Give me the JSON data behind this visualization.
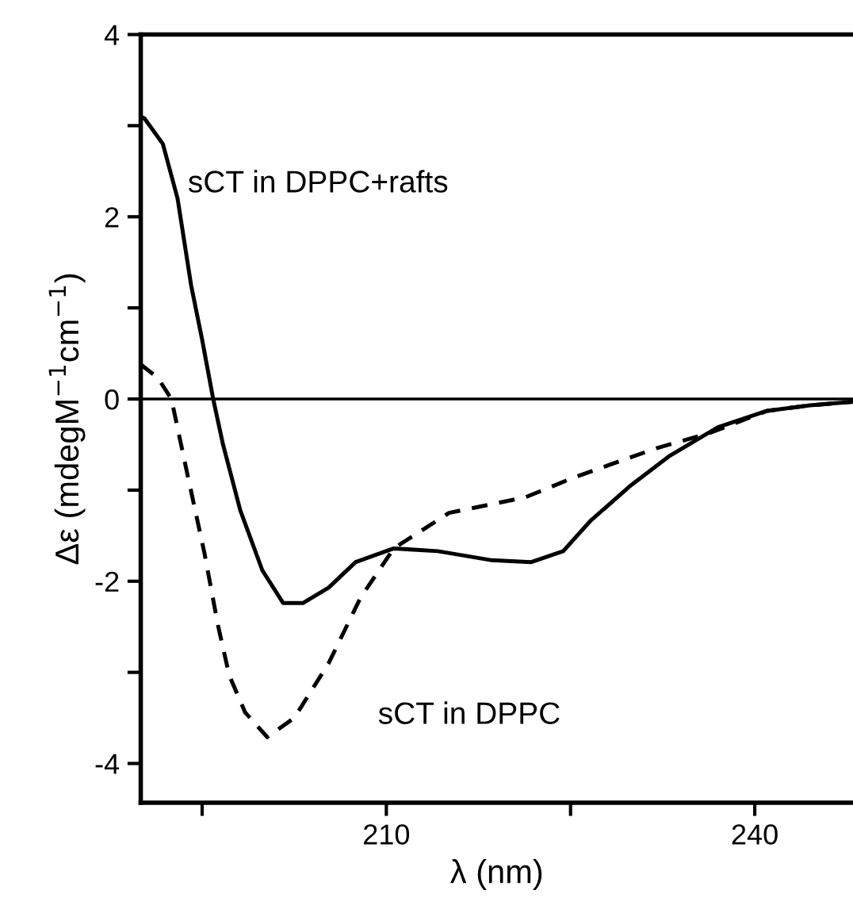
{
  "chart_data": {
    "type": "line",
    "xlabel": "λ (nm)",
    "ylabel": "Δε (mdegM$^{−1}$cm$^{−1}$)",
    "xlim": [
      190,
      248
    ],
    "ylim": [
      -4.43,
      4
    ],
    "xticks": [
      {
        "value": 195,
        "label": null
      },
      210,
      {
        "value": 225,
        "label": null
      },
      240
    ],
    "yticks": [
      -4,
      {
        "value": -3,
        "label": null
      },
      -2,
      {
        "value": -1,
        "label": null
      },
      0,
      {
        "value": 1,
        "label": null
      },
      2,
      {
        "value": 3,
        "label": null
      },
      4
    ],
    "grid": false,
    "legend": false,
    "marker": "none",
    "ref_lines": [
      {
        "axis": "y",
        "value": 0,
        "color": "#000000"
      }
    ],
    "series": [
      {
        "name": "sCT in DPPC+rafts",
        "color": "#000000",
        "line_style": "solid",
        "x": [
          190,
          190.3,
          191.8,
          193,
          194.1,
          195,
          195.9,
          196.7,
          198.1,
          199.9,
          201.6,
          203.2,
          205.3,
          207.5,
          210.6,
          214.2,
          218.6,
          221.8,
          224.4,
          226.6,
          229.8,
          233,
          237,
          241,
          244.5,
          248
        ],
        "values": [
          3.1,
          3.08,
          2.8,
          2.2,
          1.25,
          0.65,
          0,
          -0.5,
          -1.22,
          -1.88,
          -2.24,
          -2.24,
          -2.07,
          -1.79,
          -1.64,
          -1.67,
          -1.77,
          -1.79,
          -1.67,
          -1.34,
          -0.96,
          -0.63,
          -0.31,
          -0.13,
          -0.07,
          -0.03
        ]
      },
      {
        "name": "sCT in DPPC",
        "color": "#000000",
        "line_style": "dashed",
        "x": [
          190,
          191.4,
          192.5,
          193.6,
          195.2,
          196.3,
          197.2,
          198.5,
          200.3,
          202.5,
          205.3,
          207.9,
          210.6,
          215.1,
          221.3,
          225.3,
          232,
          236.4,
          241,
          244.5,
          248
        ],
        "values": [
          0.38,
          0.23,
          0,
          -0.7,
          -1.7,
          -2.49,
          -3.03,
          -3.44,
          -3.71,
          -3.5,
          -2.9,
          -2.18,
          -1.64,
          -1.25,
          -1.08,
          -0.86,
          -0.54,
          -0.37,
          -0.13,
          -0.07,
          -0.03
        ]
      }
    ]
  }
}
